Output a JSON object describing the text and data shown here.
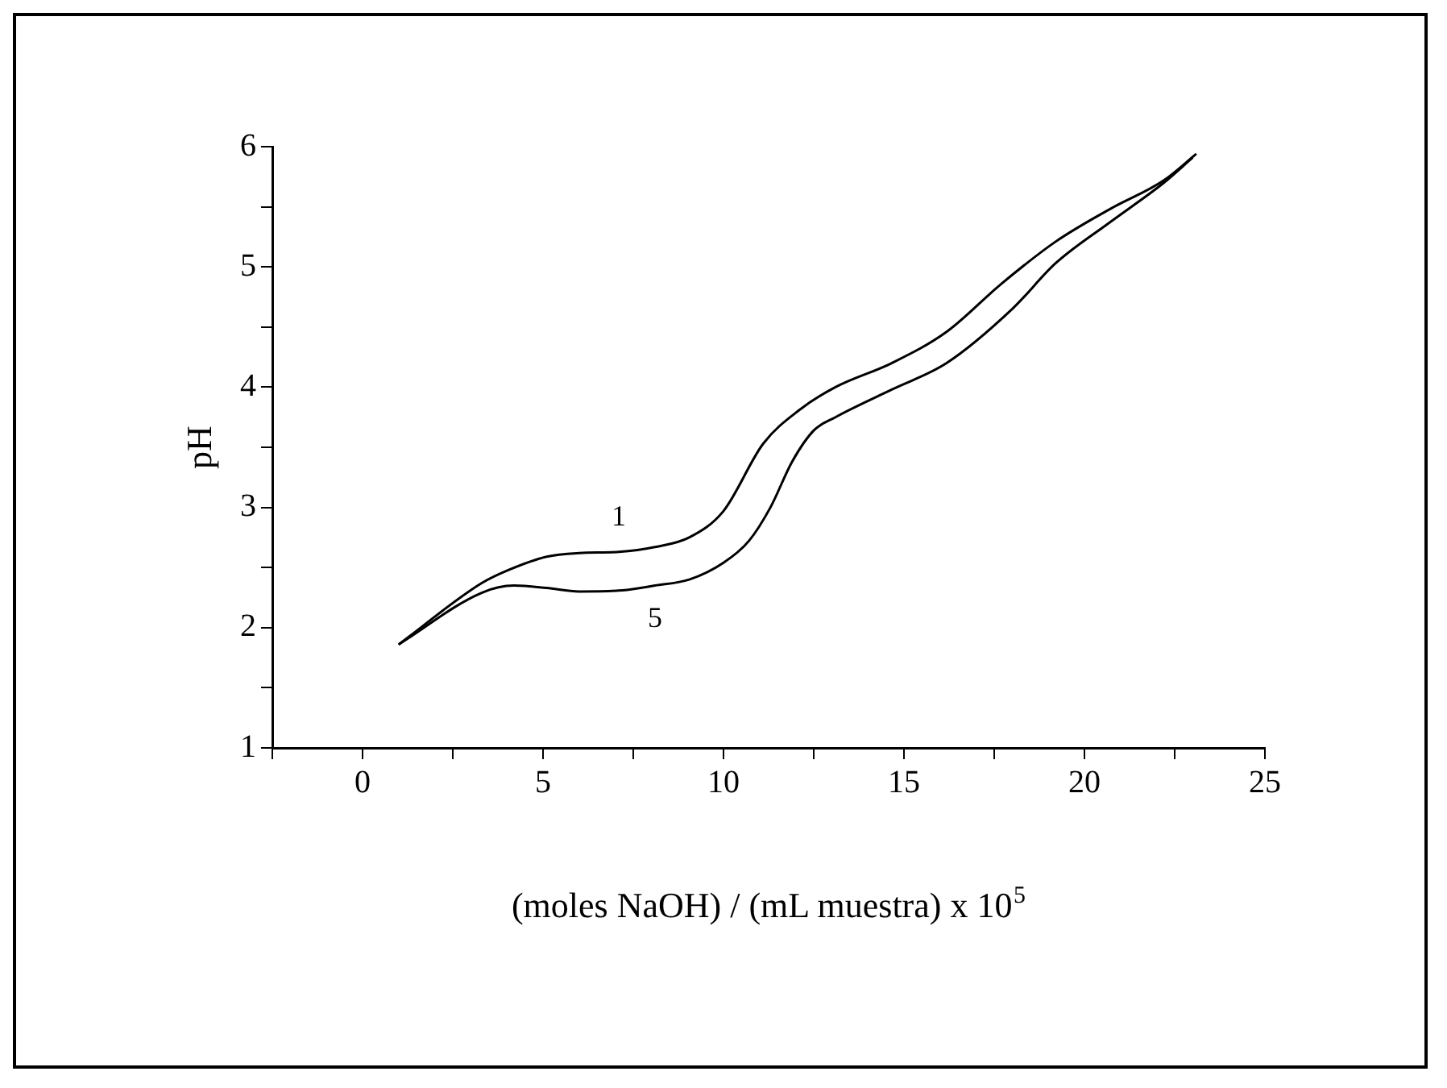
{
  "chart_data": {
    "type": "line",
    "ylabel": "pH",
    "xlabel": "(moles NaOH) / (mL muestra) x 10$^{5}$",
    "xlim": [
      -2.5,
      25
    ],
    "ylim": [
      1,
      6
    ],
    "xticks": [
      {
        "value": -2.5,
        "label": null
      },
      0,
      {
        "value": 2.5,
        "label": null
      },
      5,
      {
        "value": 7.5,
        "label": null
      },
      10,
      {
        "value": 12.5,
        "label": null
      },
      15,
      {
        "value": 17.5,
        "label": null
      },
      20,
      {
        "value": 22.5,
        "label": null
      },
      25
    ],
    "yticks": [
      1,
      {
        "value": 1.5,
        "label": null
      },
      2,
      {
        "value": 2.5,
        "label": null
      },
      3,
      {
        "value": 3.5,
        "label": null
      },
      4,
      {
        "value": 4.5,
        "label": null
      },
      5,
      {
        "value": 5.5,
        "label": null
      },
      6
    ],
    "grid": false,
    "legend": false,
    "marker": "none",
    "line_style": "solid",
    "series": [
      {
        "name": "1",
        "color": "#000000",
        "x": [
          1.0,
          3.3,
          4.05,
          5.1,
          6.0,
          7.1,
          8.1,
          9.05,
          10.0,
          11.1,
          12.1,
          13.1,
          14.66,
          16.18,
          17.7,
          19.2,
          20.7,
          22.2,
          23.1
        ],
        "values": [
          1.86,
          2.37,
          2.48,
          2.59,
          2.62,
          2.63,
          2.67,
          2.75,
          2.97,
          3.53,
          3.81,
          4.0,
          4.2,
          4.46,
          4.86,
          5.21,
          5.48,
          5.72,
          5.94
        ]
      },
      {
        "name": "5",
        "color": "#000000",
        "x": [
          1.0,
          3.3,
          4.2,
          5.1,
          6.0,
          7.2,
          8.1,
          9.05,
          10.0,
          10.7,
          11.3,
          11.9,
          12.5,
          13.1,
          14.66,
          16.18,
          18.0,
          19.2,
          20.7,
          22.2,
          23.0
        ],
        "values": [
          1.86,
          2.29,
          2.35,
          2.33,
          2.3,
          2.31,
          2.35,
          2.4,
          2.54,
          2.72,
          3.0,
          3.38,
          3.64,
          3.75,
          3.98,
          4.2,
          4.65,
          5.03,
          5.37,
          5.7,
          5.91
        ]
      }
    ]
  }
}
